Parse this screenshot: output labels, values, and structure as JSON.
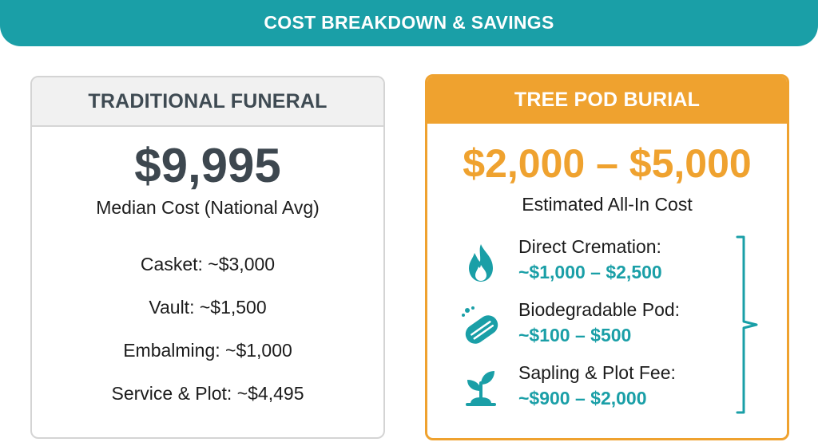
{
  "banner": {
    "title": "COST BREAKDOWN & SAVINGS"
  },
  "traditional": {
    "title": "TRADITIONAL FUNERAL",
    "price": "$9,995",
    "caption": "Median Cost (National Avg)",
    "items": [
      {
        "label": "Casket: ~$3,000"
      },
      {
        "label": "Vault: ~$1,500"
      },
      {
        "label": "Embalming: ~$1,000"
      },
      {
        "label": "Service & Plot: ~$4,495"
      }
    ]
  },
  "tree_pod": {
    "title": "TREE POD BURIAL",
    "price": "$2,000 – $5,000",
    "caption": "Estimated All-In Cost",
    "items": [
      {
        "label": "Direct Cremation:",
        "value": "~$1,000 – $2,500",
        "icon": "flame-icon"
      },
      {
        "label": "Biodegradable Pod:",
        "value": "~$100 – $500",
        "icon": "pod-icon"
      },
      {
        "label": "Sapling & Plot Fee:",
        "value": "~$900 – $2,000",
        "icon": "sapling-icon"
      }
    ]
  },
  "colors": {
    "teal": "#1a9fa7",
    "orange": "#efa22f",
    "dark_slate": "#3d474f",
    "light_gray": "#f1f1f1"
  }
}
